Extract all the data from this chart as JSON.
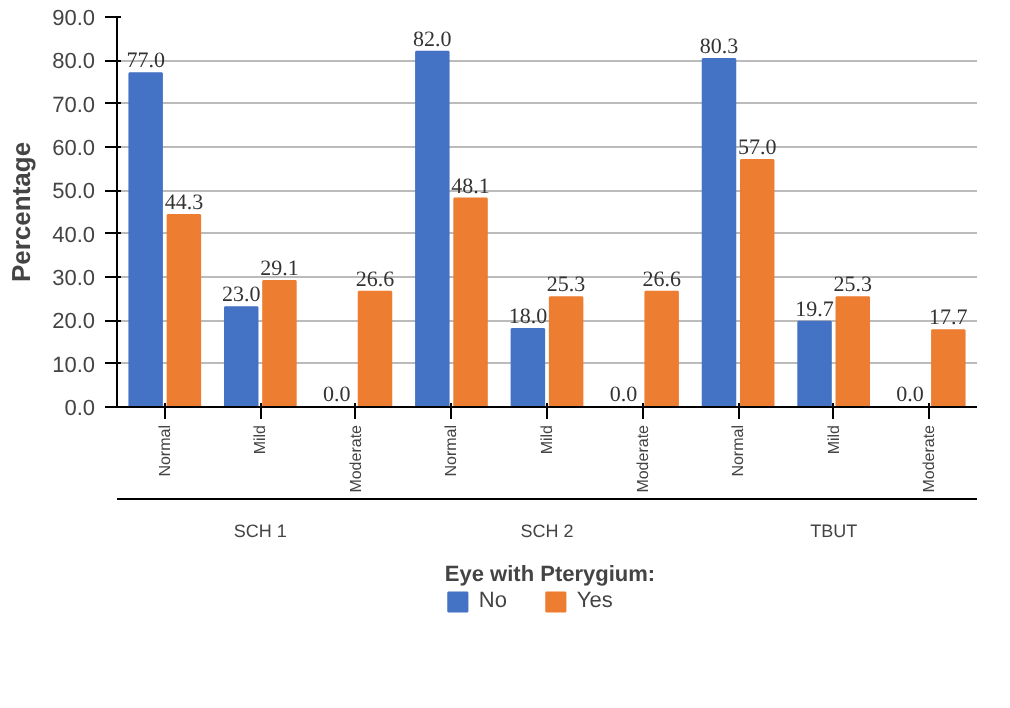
{
  "chart_data": {
    "type": "bar",
    "ylabel": "Percentage",
    "legend_title": "Eye with Pterygium:",
    "categories": [
      "Normal",
      "Mild",
      "Moderate",
      "Normal",
      "Mild",
      "Moderate",
      "Normal",
      "Mild",
      "Moderate"
    ],
    "series": [
      {
        "name": "No",
        "color": "#4472c4",
        "values": [
          77.0,
          23.0,
          0.0,
          82.0,
          18.0,
          0.0,
          80.3,
          19.7,
          0.0
        ],
        "value_labels": [
          "77.0",
          "23.0",
          "0.0",
          "82.0",
          "18.0",
          "0.0",
          "80.3",
          "19.7",
          "0.0"
        ]
      },
      {
        "name": "Yes",
        "color": "#ed7d31",
        "values": [
          44.3,
          29.1,
          26.6,
          48.1,
          25.3,
          26.6,
          57.0,
          25.3,
          17.7
        ],
        "value_labels": [
          "44.3",
          "29.1",
          "26.6",
          "48.1",
          "25.3",
          "26.6",
          "57.0",
          "25.3",
          "17.7"
        ]
      }
    ],
    "annotations": [
      "SCH 1",
      "SCH 2",
      "TBUT"
    ],
    "ylim": [
      0,
      90
    ],
    "yticks": [
      {
        "value": 0,
        "label": "0.0"
      },
      {
        "value": 10,
        "label": "10.0"
      },
      {
        "value": 20,
        "label": "20.0"
      },
      {
        "value": 30,
        "label": "30.0"
      },
      {
        "value": 40,
        "label": "40.0"
      },
      {
        "value": 50,
        "label": "50.0"
      },
      {
        "value": 60,
        "label": "60.0"
      },
      {
        "value": 70,
        "label": "70.0"
      },
      {
        "value": 80,
        "label": "80.0"
      },
      {
        "value": 90,
        "label": "90.0"
      }
    ],
    "grid": "y",
    "legend": "bottom",
    "data_labels": true
  }
}
